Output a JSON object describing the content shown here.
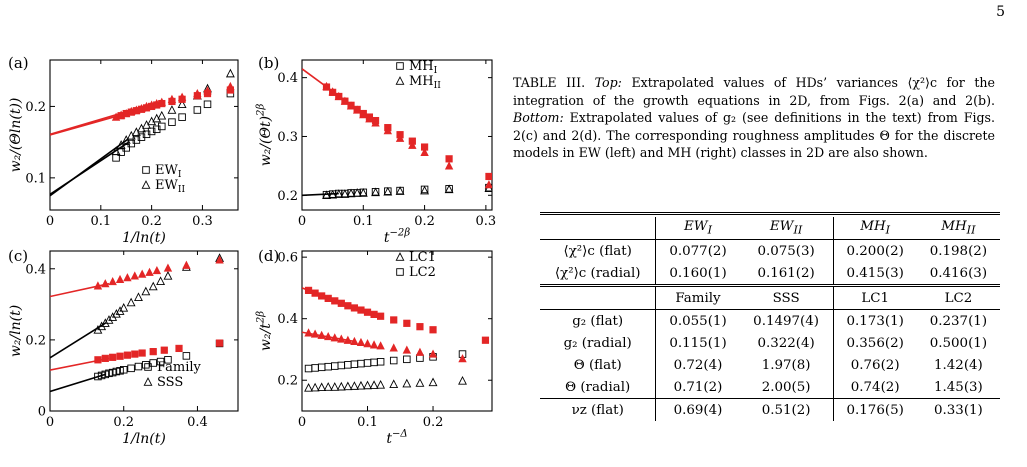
{
  "page": {
    "number": "5"
  },
  "caption": {
    "label": "TABLE III.",
    "top_label": "Top:",
    "top_text": "Extrapolated values of HDs’ variances ⟨χ²⟩c for the integration of the growth equations in 2D, from Figs. 2(a) and 2(b).",
    "bottom_label": "Bottom:",
    "bottom_text": "Extrapolated values of g₂ (see definitions in the text) from Figs. 2(c) and 2(d). The corresponding roughness amplitudes Θ for the discrete models in EW (left) and MH (right) classes in 2D are also shown."
  },
  "table": {
    "top_header": [
      "",
      "EW_I",
      "EW_II",
      "MH_I",
      "MH_II"
    ],
    "top_rows": [
      {
        "label": "⟨χ²⟩c (flat)",
        "values": [
          "0.077(2)",
          "0.075(3)",
          "0.200(2)",
          "0.198(2)"
        ]
      },
      {
        "label": "⟨χ²⟩c (radial)",
        "values": [
          "0.160(1)",
          "0.161(2)",
          "0.415(3)",
          "0.416(3)"
        ]
      }
    ],
    "bottom_header": [
      "",
      "Family",
      "SSS",
      "LC1",
      "LC2"
    ],
    "bottom_rows": [
      {
        "label": "g₂ (flat)",
        "values": [
          "0.055(1)",
          "0.1497(4)",
          "0.173(1)",
          "0.237(1)"
        ]
      },
      {
        "label": "g₂ (radial)",
        "values": [
          "0.115(1)",
          "0.322(4)",
          "0.356(2)",
          "0.500(1)"
        ]
      },
      {
        "label": "Θ (flat)",
        "values": [
          "0.72(4)",
          "1.97(8)",
          "0.76(2)",
          "1.42(4)"
        ]
      },
      {
        "label": "Θ (radial)",
        "values": [
          "0.71(2)",
          "2.00(5)",
          "0.74(2)",
          "1.45(3)"
        ]
      },
      {
        "label": "νz (flat)",
        "values": [
          "0.69(4)",
          "0.51(2)",
          "0.176(5)",
          "0.33(1)"
        ]
      }
    ]
  },
  "chart_data": [
    {
      "id": "a",
      "type": "scatter",
      "panel_label": "(a)",
      "xlabel": "1/ln(t)",
      "ylabel": "w₂/(Θln(t))",
      "xlim": [
        0,
        0.37
      ],
      "ylim": [
        0.055,
        0.265
      ],
      "xticks": [
        0,
        0.1,
        0.2,
        0.3
      ],
      "xtick_labels": [
        "0",
        "0.1",
        "0.2",
        "0.3"
      ],
      "yticks": [
        0.1,
        0.2
      ],
      "ytick_labels": [
        "0.1",
        "0.2"
      ],
      "legend_position": "bottom-right",
      "legend": [
        {
          "marker": "square",
          "label": "EW_I"
        },
        {
          "marker": "triangle",
          "label": "EW_II"
        }
      ],
      "series": [
        {
          "marker": "square",
          "color": "#000000",
          "x": [
            0.13,
            0.14,
            0.15,
            0.16,
            0.17,
            0.18,
            0.19,
            0.2,
            0.21,
            0.22,
            0.24,
            0.26,
            0.29,
            0.31,
            0.355
          ],
          "y": [
            0.128,
            0.136,
            0.142,
            0.148,
            0.153,
            0.157,
            0.161,
            0.165,
            0.168,
            0.172,
            0.178,
            0.185,
            0.195,
            0.203,
            0.218
          ]
        },
        {
          "marker": "triangle",
          "color": "#000000",
          "x": [
            0.13,
            0.14,
            0.15,
            0.16,
            0.17,
            0.18,
            0.19,
            0.2,
            0.21,
            0.22,
            0.24,
            0.26,
            0.29,
            0.31,
            0.355
          ],
          "y": [
            0.137,
            0.146,
            0.153,
            0.159,
            0.164,
            0.169,
            0.174,
            0.179,
            0.183,
            0.187,
            0.195,
            0.203,
            0.215,
            0.225,
            0.246
          ]
        },
        {
          "marker": "square",
          "color": "#e32626",
          "x": [
            0.14,
            0.15,
            0.16,
            0.17,
            0.18,
            0.19,
            0.2,
            0.21,
            0.22,
            0.24,
            0.26,
            0.29,
            0.31,
            0.355
          ],
          "y": [
            0.187,
            0.19,
            0.192,
            0.194,
            0.196,
            0.198,
            0.2,
            0.202,
            0.204,
            0.207,
            0.21,
            0.215,
            0.218,
            0.223
          ]
        },
        {
          "marker": "triangle",
          "color": "#e32626",
          "x": [
            0.13,
            0.14,
            0.15,
            0.16,
            0.17,
            0.18,
            0.19,
            0.2,
            0.21,
            0.22,
            0.24,
            0.26,
            0.29,
            0.31,
            0.355
          ],
          "y": [
            0.185,
            0.188,
            0.19,
            0.193,
            0.195,
            0.197,
            0.2,
            0.202,
            0.204,
            0.206,
            0.21,
            0.213,
            0.218,
            0.222,
            0.228
          ]
        }
      ],
      "fit_lines": [
        {
          "color": "#000000",
          "x": [
            0,
            0.155
          ],
          "y": [
            0.077,
            0.15
          ]
        },
        {
          "color": "#000000",
          "x": [
            0,
            0.155
          ],
          "y": [
            0.075,
            0.155
          ]
        },
        {
          "color": "#e32626",
          "x": [
            0,
            0.2
          ],
          "y": [
            0.16,
            0.2
          ]
        },
        {
          "color": "#e32626",
          "x": [
            0,
            0.2
          ],
          "y": [
            0.161,
            0.203
          ]
        }
      ]
    },
    {
      "id": "b",
      "type": "scatter",
      "panel_label": "(b)",
      "xlabel": "t^(−2β)",
      "ylabel": "w₂/(Θt)^(2β)",
      "xlim": [
        0,
        0.31
      ],
      "ylim": [
        0.175,
        0.43
      ],
      "xticks": [
        0,
        0.1,
        0.2,
        0.3
      ],
      "xtick_labels": [
        "0",
        "0.1",
        "0.2",
        "0.3"
      ],
      "yticks": [
        0.2,
        0.3,
        0.4
      ],
      "ytick_labels": [
        "0.2",
        "0.3",
        "0.4"
      ],
      "legend_position": "top-right",
      "legend": [
        {
          "marker": "square",
          "label": "MH_I"
        },
        {
          "marker": "triangle",
          "label": "MH_II"
        }
      ],
      "series": [
        {
          "marker": "square",
          "color": "#000000",
          "x": [
            0.04,
            0.05,
            0.06,
            0.07,
            0.08,
            0.09,
            0.1,
            0.12,
            0.14,
            0.16,
            0.2,
            0.24,
            0.305
          ],
          "y": [
            0.201,
            0.202,
            0.203,
            0.203,
            0.204,
            0.204,
            0.205,
            0.206,
            0.207,
            0.208,
            0.21,
            0.211,
            0.213
          ]
        },
        {
          "marker": "triangle",
          "color": "#000000",
          "x": [
            0.04,
            0.05,
            0.06,
            0.07,
            0.08,
            0.09,
            0.1,
            0.12,
            0.14,
            0.16,
            0.2,
            0.24,
            0.305
          ],
          "y": [
            0.2,
            0.201,
            0.202,
            0.202,
            0.203,
            0.204,
            0.204,
            0.205,
            0.206,
            0.207,
            0.208,
            0.21,
            0.212
          ]
        },
        {
          "marker": "square",
          "color": "#e32626",
          "x": [
            0.04,
            0.05,
            0.06,
            0.07,
            0.08,
            0.09,
            0.1,
            0.11,
            0.12,
            0.14,
            0.16,
            0.18,
            0.2,
            0.24,
            0.305
          ],
          "y": [
            0.384,
            0.375,
            0.368,
            0.36,
            0.353,
            0.346,
            0.339,
            0.333,
            0.327,
            0.315,
            0.303,
            0.292,
            0.282,
            0.262,
            0.232
          ]
        },
        {
          "marker": "triangle",
          "color": "#e32626",
          "x": [
            0.04,
            0.05,
            0.06,
            0.07,
            0.08,
            0.09,
            0.1,
            0.11,
            0.12,
            0.14,
            0.16,
            0.18,
            0.2,
            0.24,
            0.305
          ],
          "y": [
            0.385,
            0.376,
            0.368,
            0.36,
            0.352,
            0.345,
            0.337,
            0.33,
            0.323,
            0.31,
            0.297,
            0.285,
            0.273,
            0.25,
            0.218
          ]
        }
      ],
      "fit_lines": [
        {
          "color": "#e32626",
          "x": [
            0,
            0.09
          ],
          "y": [
            0.415,
            0.346
          ]
        },
        {
          "color": "#000000",
          "x": [
            0,
            0.06
          ],
          "y": [
            0.2,
            0.203
          ]
        }
      ]
    },
    {
      "id": "c",
      "type": "scatter",
      "panel_label": "(c)",
      "xlabel": "1/ln(t)",
      "ylabel": "w₂/ln(t)",
      "xlim": [
        0,
        0.51
      ],
      "ylim": [
        0,
        0.45
      ],
      "xticks": [
        0,
        0.2,
        0.4
      ],
      "xtick_labels": [
        "0",
        "0.2",
        "0.4"
      ],
      "yticks": [
        0,
        0.2,
        0.4
      ],
      "ytick_labels": [
        "0",
        "0.2",
        "0.4"
      ],
      "legend_position": "bottom-right",
      "legend": [
        {
          "marker": "square",
          "label": "Family"
        },
        {
          "marker": "triangle",
          "label": "SSS"
        }
      ],
      "series": [
        {
          "marker": "square",
          "color": "#000000",
          "x": [
            0.13,
            0.14,
            0.15,
            0.16,
            0.17,
            0.18,
            0.19,
            0.2,
            0.22,
            0.24,
            0.26,
            0.28,
            0.3,
            0.32,
            0.37,
            0.46
          ],
          "y": [
            0.097,
            0.1,
            0.103,
            0.106,
            0.108,
            0.111,
            0.113,
            0.116,
            0.12,
            0.125,
            0.13,
            0.135,
            0.139,
            0.144,
            0.155,
            0.19
          ]
        },
        {
          "marker": "triangle",
          "color": "#000000",
          "x": [
            0.13,
            0.14,
            0.15,
            0.16,
            0.17,
            0.18,
            0.19,
            0.2,
            0.22,
            0.24,
            0.26,
            0.28,
            0.3,
            0.32,
            0.37,
            0.46
          ],
          "y": [
            0.228,
            0.238,
            0.247,
            0.256,
            0.264,
            0.273,
            0.281,
            0.29,
            0.305,
            0.32,
            0.336,
            0.35,
            0.365,
            0.38,
            0.405,
            0.43
          ]
        },
        {
          "marker": "square",
          "color": "#e32626",
          "x": [
            0.13,
            0.15,
            0.17,
            0.19,
            0.21,
            0.23,
            0.25,
            0.28,
            0.31,
            0.35,
            0.46
          ],
          "y": [
            0.144,
            0.148,
            0.151,
            0.154,
            0.157,
            0.16,
            0.163,
            0.167,
            0.171,
            0.176,
            0.191
          ]
        },
        {
          "marker": "triangle",
          "color": "#e32626",
          "x": [
            0.13,
            0.15,
            0.17,
            0.19,
            0.21,
            0.23,
            0.25,
            0.27,
            0.29,
            0.32,
            0.37,
            0.46
          ],
          "y": [
            0.352,
            0.358,
            0.364,
            0.37,
            0.375,
            0.38,
            0.385,
            0.39,
            0.395,
            0.402,
            0.41,
            0.425
          ]
        }
      ],
      "fit_lines": [
        {
          "color": "#000000",
          "x": [
            0,
            0.15
          ],
          "y": [
            0.055,
            0.103
          ]
        },
        {
          "color": "#000000",
          "x": [
            0,
            0.15
          ],
          "y": [
            0.1497,
            0.247
          ]
        },
        {
          "color": "#e32626",
          "x": [
            0,
            0.16
          ],
          "y": [
            0.115,
            0.148
          ]
        },
        {
          "color": "#e32626",
          "x": [
            0,
            0.16
          ],
          "y": [
            0.322,
            0.358
          ]
        }
      ]
    },
    {
      "id": "d",
      "type": "scatter",
      "panel_label": "(d)",
      "xlabel": "t^(−Δ)",
      "ylabel": "w₂/t^(2β)",
      "xlim": [
        0,
        0.29
      ],
      "ylim": [
        0.1,
        0.62
      ],
      "xticks": [
        0,
        0.1,
        0.2
      ],
      "xtick_labels": [
        "0",
        "0.1",
        "0.2"
      ],
      "yticks": [
        0.2,
        0.4,
        0.6
      ],
      "ytick_labels": [
        "0.2",
        "0.4",
        "0.6"
      ],
      "legend_position": "top-right",
      "legend": [
        {
          "marker": "triangle",
          "label": "LC1"
        },
        {
          "marker": "square",
          "label": "LC2"
        }
      ],
      "series": [
        {
          "marker": "triangle",
          "color": "#000000",
          "x": [
            0.01,
            0.02,
            0.03,
            0.04,
            0.05,
            0.06,
            0.07,
            0.08,
            0.09,
            0.1,
            0.11,
            0.12,
            0.14,
            0.16,
            0.18,
            0.2,
            0.245
          ],
          "y": [
            0.175,
            0.176,
            0.177,
            0.178,
            0.178,
            0.179,
            0.18,
            0.181,
            0.182,
            0.183,
            0.184,
            0.185,
            0.187,
            0.189,
            0.191,
            0.193,
            0.198
          ]
        },
        {
          "marker": "square",
          "color": "#000000",
          "x": [
            0.01,
            0.02,
            0.03,
            0.04,
            0.05,
            0.06,
            0.07,
            0.08,
            0.09,
            0.1,
            0.11,
            0.12,
            0.14,
            0.16,
            0.18,
            0.2,
            0.245
          ],
          "y": [
            0.238,
            0.24,
            0.242,
            0.244,
            0.246,
            0.248,
            0.25,
            0.252,
            0.254,
            0.256,
            0.258,
            0.26,
            0.264,
            0.268,
            0.272,
            0.276,
            0.285
          ]
        },
        {
          "marker": "triangle",
          "color": "#e32626",
          "x": [
            0.01,
            0.02,
            0.03,
            0.04,
            0.05,
            0.06,
            0.07,
            0.08,
            0.09,
            0.1,
            0.11,
            0.12,
            0.14,
            0.16,
            0.18,
            0.2,
            0.245
          ],
          "y": [
            0.354,
            0.35,
            0.346,
            0.342,
            0.338,
            0.334,
            0.33,
            0.326,
            0.323,
            0.319,
            0.315,
            0.312,
            0.305,
            0.298,
            0.291,
            0.285,
            0.27
          ]
        },
        {
          "marker": "square",
          "color": "#e32626",
          "x": [
            0.01,
            0.02,
            0.03,
            0.04,
            0.05,
            0.06,
            0.07,
            0.08,
            0.09,
            0.1,
            0.11,
            0.12,
            0.14,
            0.16,
            0.18,
            0.2,
            0.28
          ],
          "y": [
            0.492,
            0.483,
            0.474,
            0.466,
            0.458,
            0.45,
            0.442,
            0.435,
            0.428,
            0.421,
            0.414,
            0.408,
            0.396,
            0.385,
            0.374,
            0.364,
            0.33
          ]
        }
      ],
      "fit_lines": [
        {
          "color": "#e32626",
          "x": [
            0,
            0.08
          ],
          "y": [
            0.5,
            0.435
          ]
        },
        {
          "color": "#e32626",
          "x": [
            0,
            0.08
          ],
          "y": [
            0.356,
            0.326
          ]
        }
      ]
    }
  ]
}
